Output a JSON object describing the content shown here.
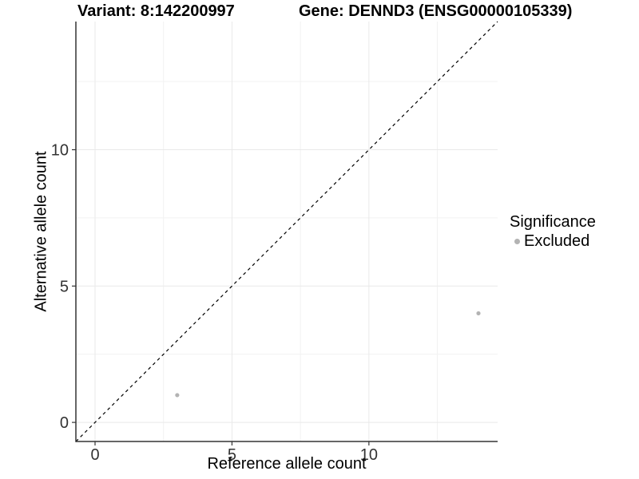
{
  "chart_data": {
    "type": "scatter",
    "title_left": "Variant: 8:142200997",
    "title_right": "Gene: DENND3 (ENSG00000105339)",
    "xlabel": "Reference allele count",
    "ylabel": "Alternative allele count",
    "xlim": [
      -0.7,
      14.7
    ],
    "ylim": [
      -0.7,
      14.7
    ],
    "x_major_ticks": [
      0,
      5,
      10
    ],
    "y_major_ticks": [
      0,
      5,
      10
    ],
    "x_minor_gridlines": [
      2.5,
      7.5,
      12.5
    ],
    "y_minor_gridlines": [
      2.5,
      7.5,
      12.5
    ],
    "grid": true,
    "identity_line": {
      "equation": "y = x",
      "style": "dashed",
      "color": "#000000"
    },
    "series": [
      {
        "name": "Excluded",
        "color": "#b3b3b3",
        "points": [
          {
            "x": 3,
            "y": 1
          },
          {
            "x": 14,
            "y": 4
          }
        ]
      }
    ],
    "legend": {
      "title": "Significance",
      "position": "right",
      "items": [
        {
          "label": "Excluded",
          "color": "#b3b3b3",
          "marker": "point-icon"
        }
      ]
    },
    "colors": {
      "background": "#ffffff",
      "grid_major": "#e9e9e9",
      "grid_minor": "#f2f2f2",
      "axis_line": "#333333",
      "tick_text": "#333333",
      "title_text": "#000000"
    }
  }
}
